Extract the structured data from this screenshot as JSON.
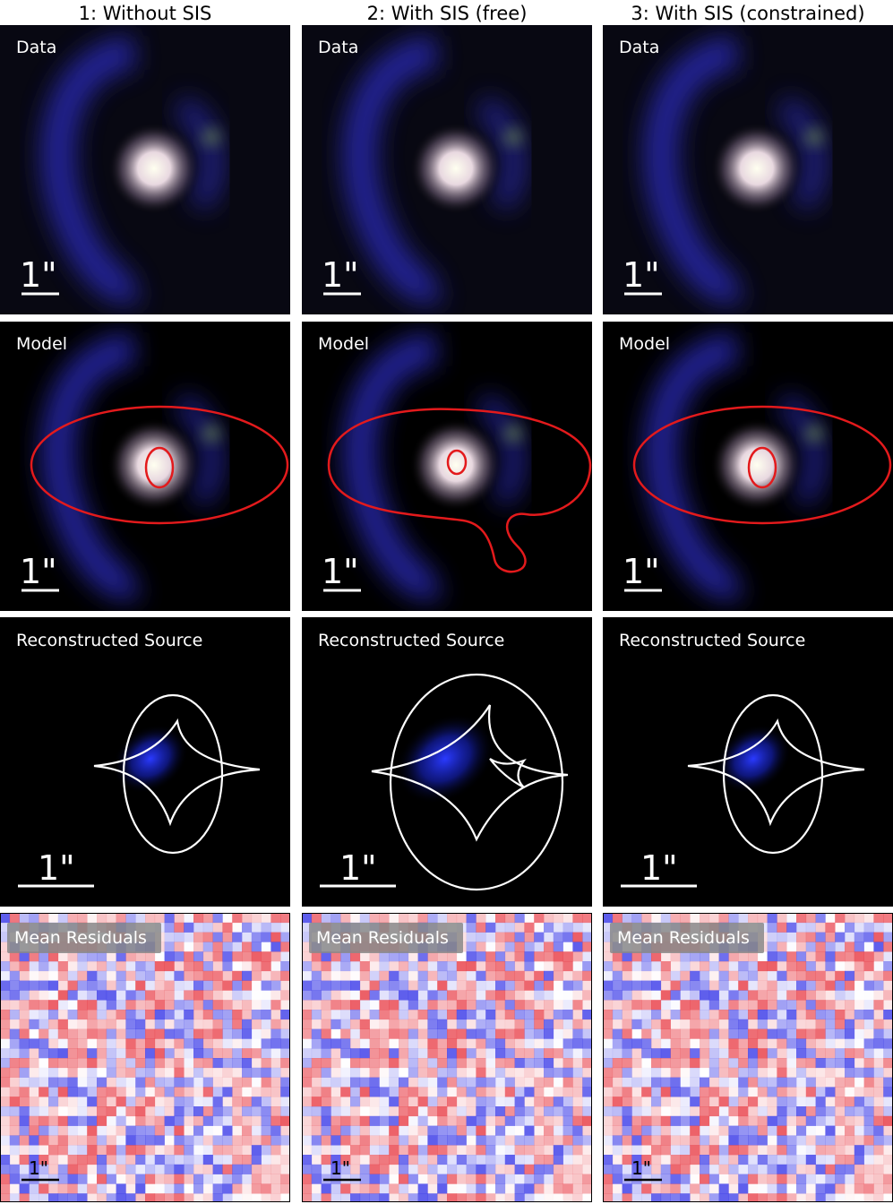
{
  "columns": [
    {
      "title": "1: Without SIS",
      "panels": [
        {
          "label": "Data",
          "scale": "1\""
        },
        {
          "label": "Model",
          "scale": "1\""
        },
        {
          "label": "Reconstructed Source",
          "scale": "1\""
        },
        {
          "label": "Mean Residuals",
          "scale": "1\""
        }
      ]
    },
    {
      "title": "2: With SIS (free)",
      "panels": [
        {
          "label": "Data",
          "scale": "1\""
        },
        {
          "label": "Model",
          "scale": "1\""
        },
        {
          "label": "Reconstructed Source",
          "scale": "1\""
        },
        {
          "label": "Mean Residuals",
          "scale": "1\""
        }
      ]
    },
    {
      "title": "3: With SIS (constrained)",
      "panels": [
        {
          "label": "Data",
          "scale": "1\""
        },
        {
          "label": "Model",
          "scale": "1\""
        },
        {
          "label": "Reconstructed Source",
          "scale": "1\""
        },
        {
          "label": "Mean Residuals",
          "scale": "1\""
        }
      ]
    }
  ]
}
